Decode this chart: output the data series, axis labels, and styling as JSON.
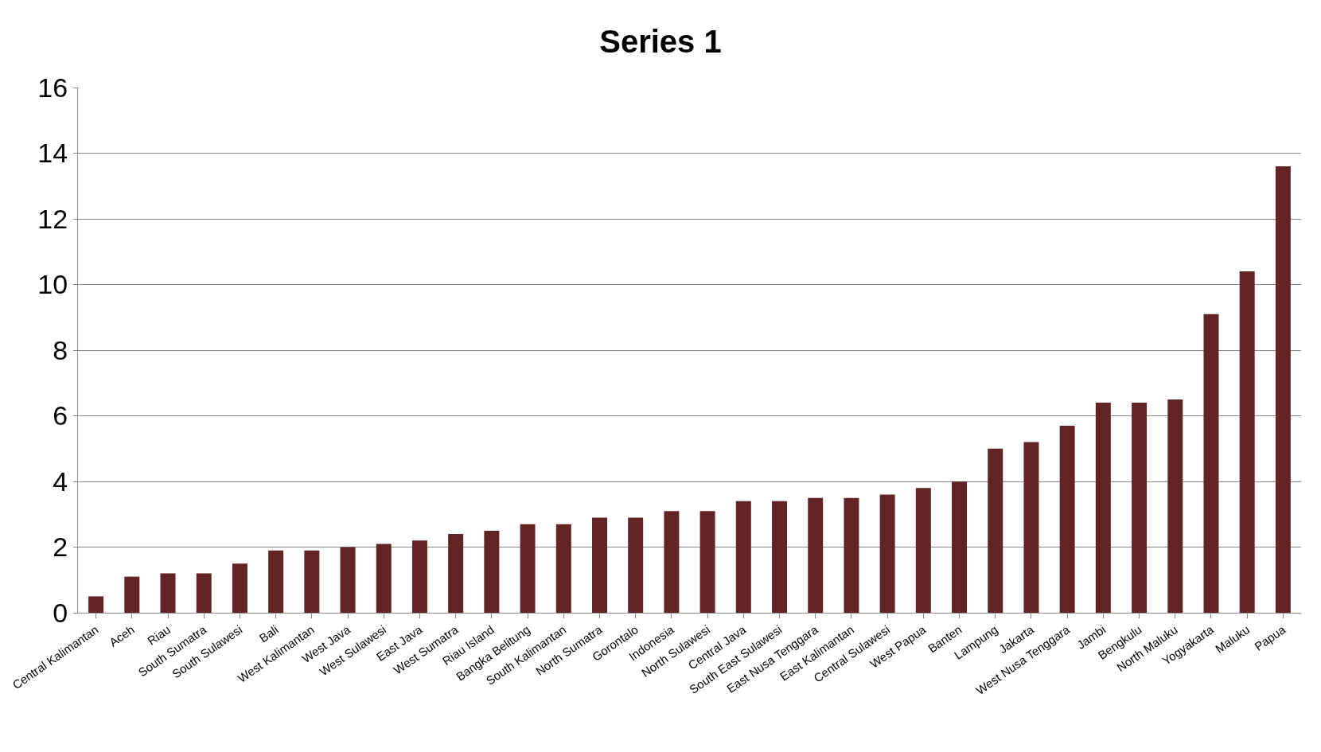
{
  "chart_data": {
    "type": "bar",
    "title": "Series 1",
    "categories": [
      "Central Kalimantan",
      "Aceh",
      "Riau",
      "South Sumatra",
      "South Sulawesi",
      "Bali",
      "West Kalimantan",
      "West Java",
      "West Sulawesi",
      "East Java",
      "West Sumatra",
      "Riau Island",
      "Bangka Belitung",
      "South Kalimantan",
      "North Sumatra",
      "Gorontalo",
      "Indonesia",
      "North Sulawesi",
      "Central Java",
      "South East Sulawesi",
      "East Nusa Tenggara",
      "East Kalimantan",
      "Central Sulawesi",
      "West Papua",
      "Banten",
      "Lampung",
      "Jakarta",
      "West Nusa Tenggara",
      "Jambi",
      "Bengkulu",
      "North Maluku",
      "Yogyakarta",
      "Maluku",
      "Papua"
    ],
    "values": [
      0.5,
      1.1,
      1.2,
      1.2,
      1.5,
      1.9,
      1.9,
      2.0,
      2.1,
      2.2,
      2.4,
      2.5,
      2.7,
      2.7,
      2.9,
      2.9,
      3.1,
      3.1,
      3.4,
      3.4,
      3.5,
      3.5,
      3.6,
      3.8,
      4.0,
      5.0,
      5.2,
      5.7,
      6.4,
      6.4,
      6.5,
      9.1,
      10.4,
      13.6
    ],
    "color": "#632523",
    "ylim": [
      0,
      16
    ],
    "yticks": [
      0,
      2,
      4,
      6,
      8,
      10,
      12,
      14,
      16
    ],
    "grid": "y"
  }
}
